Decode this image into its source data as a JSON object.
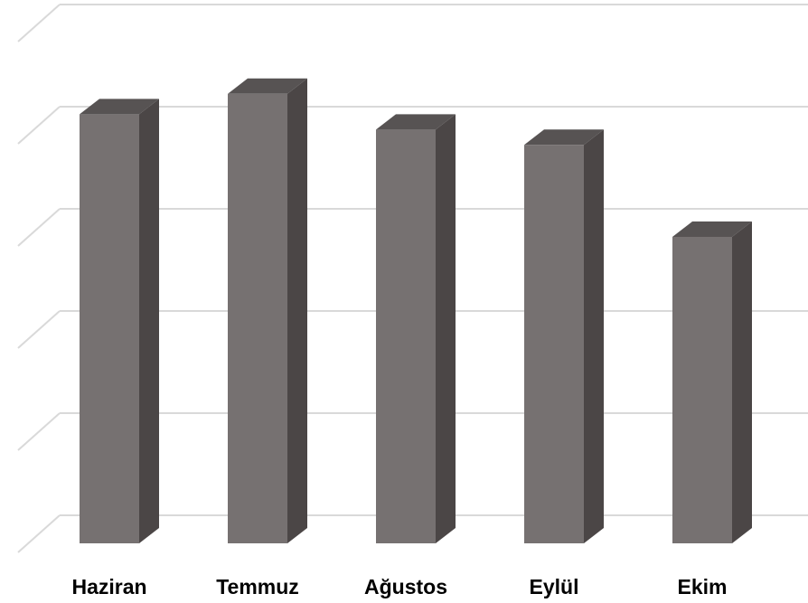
{
  "chart_data": {
    "type": "bar",
    "style": "3d-column",
    "categories": [
      "Haziran",
      "Temmuz",
      "Ağustos",
      "Eylül",
      "Ekim"
    ],
    "values": [
      4.2,
      4.4,
      4.05,
      3.9,
      3.0
    ],
    "ylim": [
      0,
      5
    ],
    "grid": true,
    "legend": "none",
    "colors": {
      "bar_front": "#767171",
      "bar_side": "#4b4646",
      "bar_top": "#575353",
      "grid": "#d9d9d9",
      "label": "#000000"
    }
  }
}
